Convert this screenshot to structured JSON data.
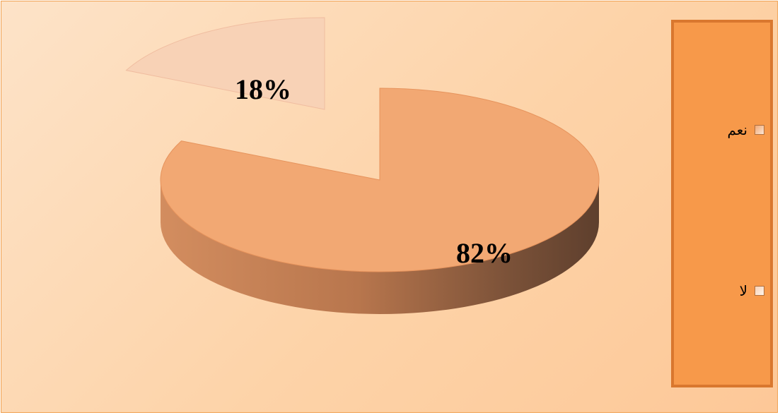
{
  "chart_data": {
    "type": "pie",
    "style": "3d-exploded",
    "slices": [
      {
        "label": "نعم",
        "value": 82,
        "display": "82%",
        "color": "#f2a873"
      },
      {
        "label": "لا",
        "value": 18,
        "display": "18%",
        "color": "#f8d2b6"
      }
    ],
    "legend_position": "right"
  },
  "colors": {
    "background_top": "#fde3c8",
    "background_bottom": "#fdc898",
    "legend_background": "#f7994a",
    "legend_border": "#d9772e",
    "side_dark": "#6b4a3a",
    "side_light": "#c8865a"
  }
}
